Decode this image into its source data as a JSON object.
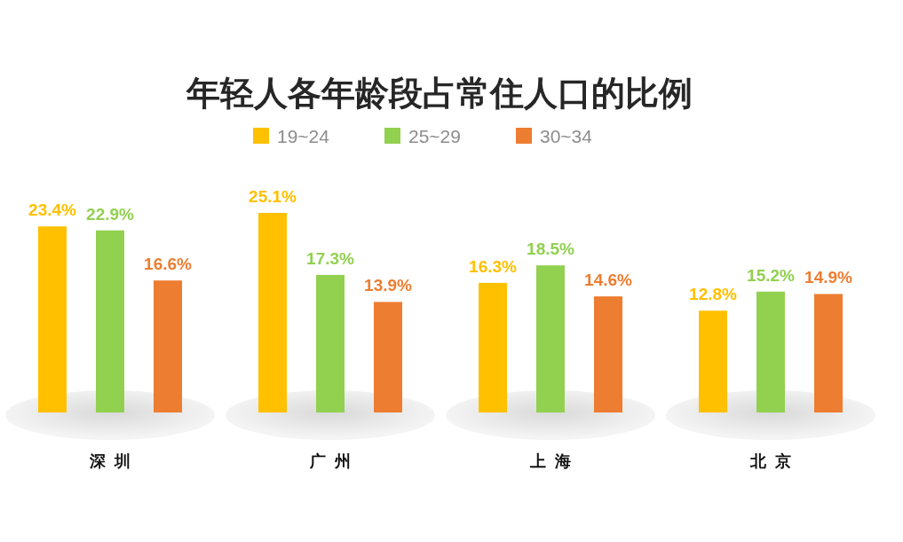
{
  "chart_data": {
    "type": "bar",
    "title": "年轻人各年龄段占常住人口的比例",
    "categories": [
      "深圳",
      "广州",
      "上海",
      "北京"
    ],
    "series": [
      {
        "name": "19~24",
        "color": "#ffc000",
        "values": [
          23.4,
          25.1,
          16.3,
          12.8
        ],
        "value_labels": [
          "23.4%",
          "25.1%",
          "16.3%",
          "12.8%"
        ]
      },
      {
        "name": "25~29",
        "color": "#92d050",
        "values": [
          22.9,
          17.3,
          18.5,
          15.2
        ],
        "value_labels": [
          "22.9%",
          "17.3%",
          "18.5%",
          "15.2%"
        ]
      },
      {
        "name": "30~34",
        "color": "#ed7d31",
        "values": [
          16.6,
          13.9,
          14.6,
          14.9
        ],
        "value_labels": [
          "16.6%",
          "13.9%",
          "14.6%",
          "14.9%"
        ]
      }
    ],
    "legend": "top"
  }
}
